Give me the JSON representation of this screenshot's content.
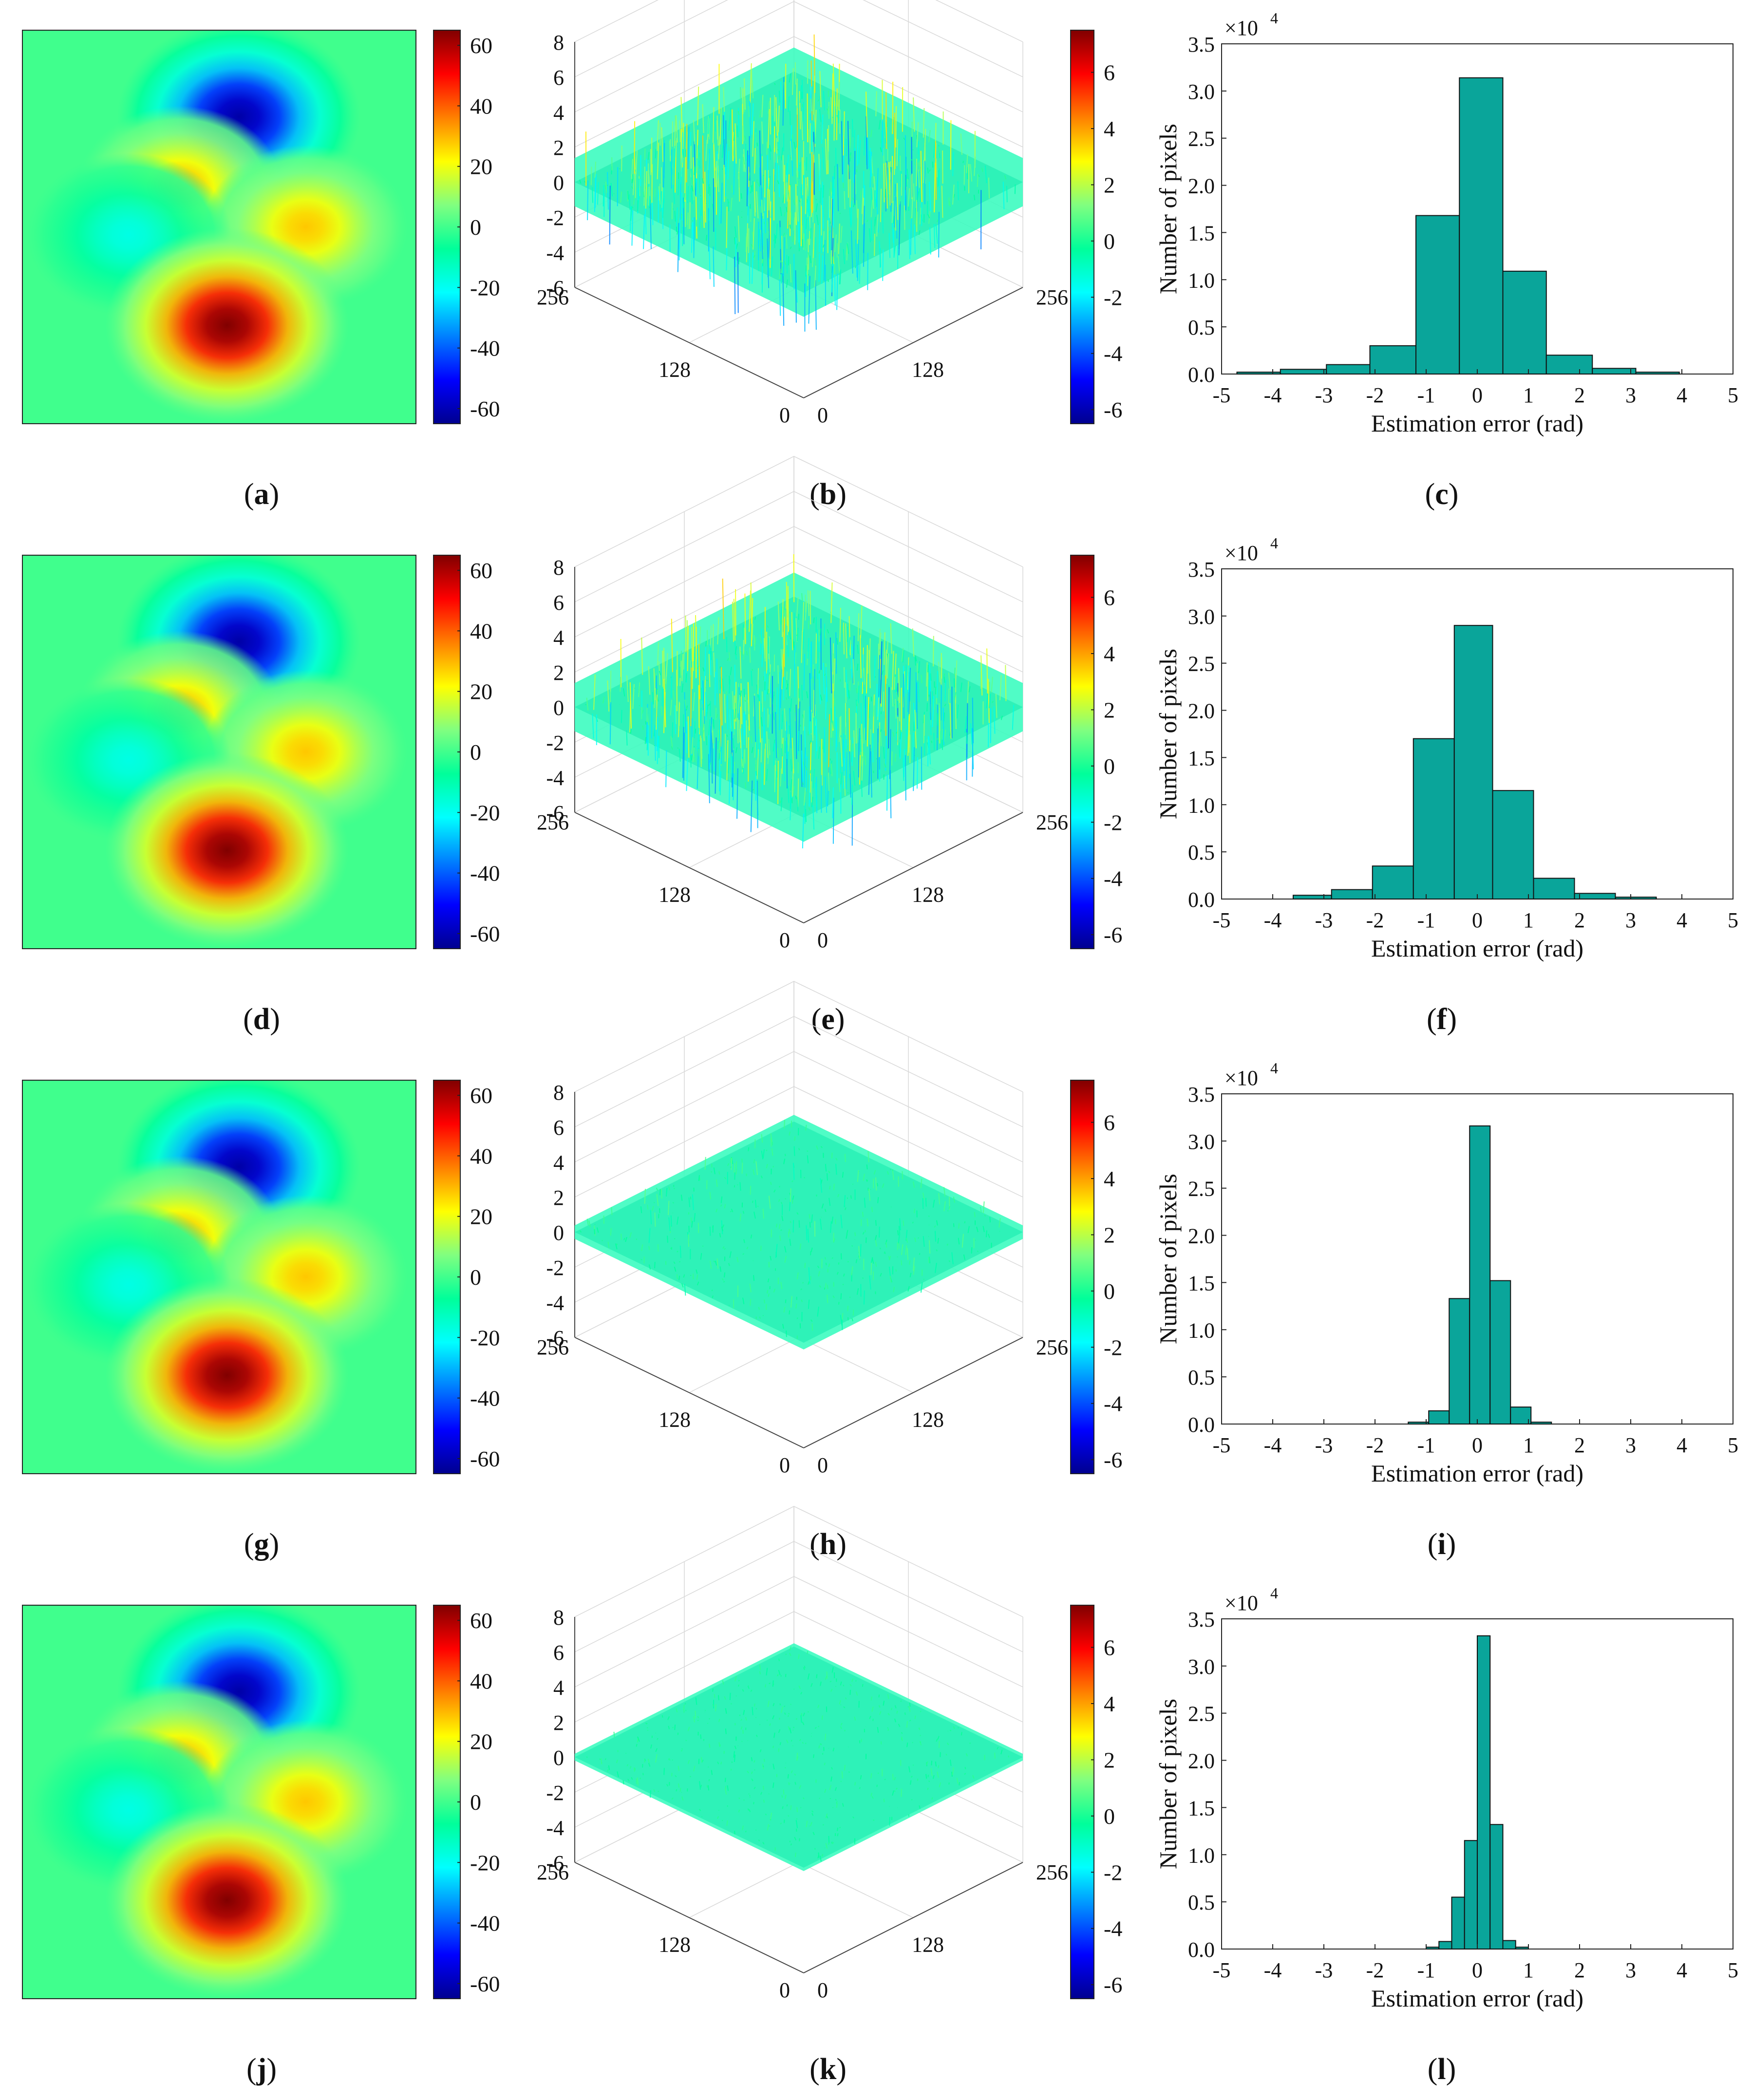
{
  "figure": {
    "panel_labels": [
      "a",
      "b",
      "c",
      "d",
      "e",
      "f",
      "g",
      "h",
      "i",
      "j",
      "k",
      "l"
    ],
    "colorscale": [
      "#00008f",
      "#0000ff",
      "#0080ff",
      "#00ffff",
      "#00ff9a",
      "#80ff80",
      "#ffff00",
      "#ff8000",
      "#ff0000",
      "#800000"
    ]
  },
  "chart_data": [
    {
      "type": "heatmap",
      "label": "a",
      "title": "",
      "colorbar": {
        "range": [
          -65,
          65
        ],
        "ticks": [
          -60,
          -40,
          -20,
          0,
          20,
          40,
          60
        ]
      },
      "blobs": [
        {
          "center": [
            0.55,
            0.22
          ],
          "value": -62
        },
        {
          "center": [
            0.4,
            0.4
          ],
          "value": 30
        },
        {
          "center": [
            0.72,
            0.5
          ],
          "value": 28
        },
        {
          "center": [
            0.27,
            0.52
          ],
          "value": -18
        },
        {
          "center": [
            0.52,
            0.75
          ],
          "value": 65
        }
      ]
    },
    {
      "type": "surface",
      "label": "b",
      "zlim": [
        -6,
        8
      ],
      "zticks": [
        -6,
        -4,
        -2,
        0,
        2,
        4,
        6,
        8
      ],
      "xticks": [
        "0",
        "128",
        "256"
      ],
      "yticks": [
        "0",
        "128",
        "256"
      ],
      "noise_amplitude": 2.5,
      "colorbar": {
        "range": [
          -6.5,
          7.5
        ],
        "ticks": [
          -6,
          -4,
          -2,
          0,
          2,
          4,
          6
        ]
      }
    },
    {
      "type": "bar",
      "label": "c",
      "xlabel": "Estimation error (rad)",
      "ylabel": "Number of pixels",
      "multiplier": "×10",
      "exponent": "4",
      "xlim": [
        -5,
        5
      ],
      "ylim": [
        0,
        3.5
      ],
      "xticks": [
        -5,
        -4,
        -3,
        -2,
        -1,
        0,
        1,
        2,
        3,
        4,
        5
      ],
      "yticks": [
        "0.0",
        "0.5",
        "1.0",
        "1.5",
        "2.0",
        "2.5",
        "3.0",
        "3.5"
      ],
      "bin_edges": [
        -4.7,
        -3.85,
        -2.95,
        -2.1,
        -1.2,
        -0.35,
        0.5,
        1.35,
        2.25,
        3.1,
        3.95
      ],
      "values": [
        0.02,
        0.05,
        0.1,
        0.3,
        1.68,
        3.14,
        1.09,
        0.2,
        0.06,
        0.02
      ]
    },
    {
      "type": "heatmap",
      "label": "d",
      "colorbar": {
        "range": [
          -65,
          65
        ],
        "ticks": [
          -60,
          -40,
          -20,
          0,
          20,
          40,
          60
        ]
      },
      "blobs": [
        {
          "center": [
            0.55,
            0.22
          ],
          "value": -62
        },
        {
          "center": [
            0.4,
            0.4
          ],
          "value": 30
        },
        {
          "center": [
            0.72,
            0.5
          ],
          "value": 28
        },
        {
          "center": [
            0.27,
            0.52
          ],
          "value": -18
        },
        {
          "center": [
            0.52,
            0.75
          ],
          "value": 65
        }
      ]
    },
    {
      "type": "surface",
      "label": "e",
      "zlim": [
        -6,
        8
      ],
      "zticks": [
        -6,
        -4,
        -2,
        0,
        2,
        4,
        6,
        8
      ],
      "xticks": [
        "0",
        "128",
        "256"
      ],
      "yticks": [
        "0",
        "128",
        "256"
      ],
      "noise_amplitude": 2.5,
      "colorbar": {
        "range": [
          -6.5,
          7.5
        ],
        "ticks": [
          -6,
          -4,
          -2,
          0,
          2,
          4,
          6
        ]
      }
    },
    {
      "type": "bar",
      "label": "f",
      "xlabel": "Estimation error (rad)",
      "ylabel": "Number of pixels",
      "multiplier": "×10",
      "exponent": "4",
      "xlim": [
        -5,
        5
      ],
      "ylim": [
        0,
        3.5
      ],
      "xticks": [
        -5,
        -4,
        -3,
        -2,
        -1,
        0,
        1,
        2,
        3,
        4,
        5
      ],
      "yticks": [
        "0.0",
        "0.5",
        "1.0",
        "1.5",
        "2.0",
        "2.5",
        "3.0",
        "3.5"
      ],
      "bin_edges": [
        -3.6,
        -2.85,
        -2.05,
        -1.25,
        -0.45,
        0.3,
        1.1,
        1.9,
        2.7,
        3.5
      ],
      "values": [
        0.04,
        0.1,
        0.35,
        1.7,
        2.9,
        1.15,
        0.22,
        0.06,
        0.02
      ]
    },
    {
      "type": "heatmap",
      "label": "g",
      "colorbar": {
        "range": [
          -65,
          65
        ],
        "ticks": [
          -60,
          -40,
          -20,
          0,
          20,
          40,
          60
        ]
      },
      "blobs": [
        {
          "center": [
            0.55,
            0.22
          ],
          "value": -62
        },
        {
          "center": [
            0.4,
            0.4
          ],
          "value": 30
        },
        {
          "center": [
            0.72,
            0.5
          ],
          "value": 28
        },
        {
          "center": [
            0.27,
            0.52
          ],
          "value": -18
        },
        {
          "center": [
            0.52,
            0.75
          ],
          "value": 65
        }
      ]
    },
    {
      "type": "surface",
      "label": "h",
      "zlim": [
        -6,
        8
      ],
      "zticks": [
        -6,
        -4,
        -2,
        0,
        2,
        4,
        6,
        8
      ],
      "xticks": [
        "0",
        "128",
        "256"
      ],
      "yticks": [
        "0",
        "128",
        "256"
      ],
      "noise_amplitude": 0.7,
      "colorbar": {
        "range": [
          -6.5,
          7.5
        ],
        "ticks": [
          -6,
          -4,
          -2,
          0,
          2,
          4,
          6
        ]
      }
    },
    {
      "type": "bar",
      "label": "i",
      "xlabel": "Estimation error (rad)",
      "ylabel": "Number of pixels",
      "multiplier": "×10",
      "exponent": "4",
      "xlim": [
        -5,
        5
      ],
      "ylim": [
        0,
        3.5
      ],
      "xticks": [
        -5,
        -4,
        -3,
        -2,
        -1,
        0,
        1,
        2,
        3,
        4,
        5
      ],
      "yticks": [
        "0.0",
        "0.5",
        "1.0",
        "1.5",
        "2.0",
        "2.5",
        "3.0",
        "3.5"
      ],
      "bin_edges": [
        -1.35,
        -0.95,
        -0.55,
        -0.15,
        0.25,
        0.65,
        1.05,
        1.45
      ],
      "values": [
        0.02,
        0.14,
        1.33,
        3.16,
        1.52,
        0.18,
        0.02
      ]
    },
    {
      "type": "heatmap",
      "label": "j",
      "colorbar": {
        "range": [
          -65,
          65
        ],
        "ticks": [
          -60,
          -40,
          -20,
          0,
          20,
          40,
          60
        ]
      },
      "blobs": [
        {
          "center": [
            0.55,
            0.22
          ],
          "value": -62
        },
        {
          "center": [
            0.4,
            0.4
          ],
          "value": 30
        },
        {
          "center": [
            0.72,
            0.5
          ],
          "value": 28
        },
        {
          "center": [
            0.27,
            0.52
          ],
          "value": -18
        },
        {
          "center": [
            0.52,
            0.75
          ],
          "value": 65
        }
      ]
    },
    {
      "type": "surface",
      "label": "k",
      "zlim": [
        -6,
        8
      ],
      "zticks": [
        -6,
        -4,
        -2,
        0,
        2,
        4,
        6,
        8
      ],
      "xticks": [
        "0",
        "128",
        "256"
      ],
      "yticks": [
        "0",
        "128",
        "256"
      ],
      "noise_amplitude": 0.35,
      "colorbar": {
        "range": [
          -6.5,
          7.5
        ],
        "ticks": [
          -6,
          -4,
          -2,
          0,
          2,
          4,
          6
        ]
      }
    },
    {
      "type": "bar",
      "label": "l",
      "xlabel": "Estimation error (rad)",
      "ylabel": "Number of pixels",
      "multiplier": "×10",
      "exponent": "4",
      "xlim": [
        -5,
        5
      ],
      "ylim": [
        0,
        3.5
      ],
      "xticks": [
        -5,
        -4,
        -3,
        -2,
        -1,
        0,
        1,
        2,
        3,
        4,
        5
      ],
      "yticks": [
        "0.0",
        "0.5",
        "1.0",
        "1.5",
        "2.0",
        "2.5",
        "3.0",
        "3.5"
      ],
      "bin_edges": [
        -1.0,
        -0.75,
        -0.5,
        -0.25,
        0.0,
        0.25,
        0.5,
        0.75,
        1.0
      ],
      "values": [
        0.02,
        0.08,
        0.55,
        1.15,
        3.32,
        1.32,
        0.09,
        0.02
      ]
    }
  ]
}
